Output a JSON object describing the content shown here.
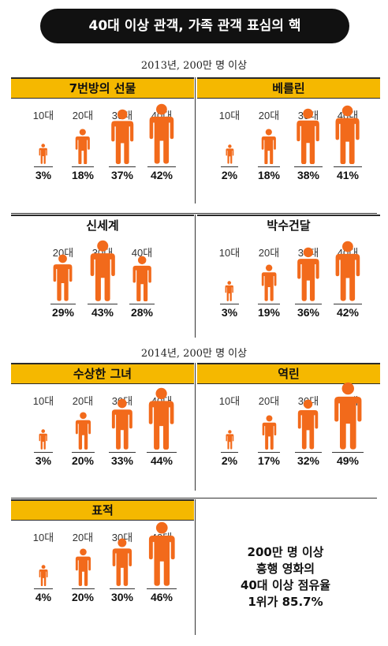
{
  "title": "40대 이상 관객, 가족 관객 표심의 핵",
  "sections": [
    {
      "label": "2013년, 200만 명 이상",
      "panels": [
        {
          "name": "7번방의 선물",
          "groups": [
            {
              "age": "10대",
              "percent": 3,
              "label": "3%"
            },
            {
              "age": "20대",
              "percent": 18,
              "label": "18%"
            },
            {
              "age": "30대",
              "percent": 37,
              "label": "37%"
            },
            {
              "age": "40대",
              "percent": 42,
              "label": "42%"
            }
          ]
        },
        {
          "name": "베를린",
          "groups": [
            {
              "age": "10대",
              "percent": 2,
              "label": "2%"
            },
            {
              "age": "20대",
              "percent": 18,
              "label": "18%"
            },
            {
              "age": "30대",
              "percent": 38,
              "label": "38%"
            },
            {
              "age": "40대",
              "percent": 41,
              "label": "41%"
            }
          ]
        },
        {
          "name": "신세계",
          "groups": [
            {
              "age": "20대",
              "percent": 29,
              "label": "29%"
            },
            {
              "age": "30대",
              "percent": 43,
              "label": "43%"
            },
            {
              "age": "40대",
              "percent": 28,
              "label": "28%"
            }
          ]
        },
        {
          "name": "박수건달",
          "groups": [
            {
              "age": "10대",
              "percent": 3,
              "label": "3%"
            },
            {
              "age": "20대",
              "percent": 19,
              "label": "19%"
            },
            {
              "age": "30대",
              "percent": 36,
              "label": "36%"
            },
            {
              "age": "40대",
              "percent": 42,
              "label": "42%"
            }
          ]
        }
      ]
    },
    {
      "label": "2014년, 200만 명 이상",
      "panels": [
        {
          "name": "수상한 그녀",
          "groups": [
            {
              "age": "10대",
              "percent": 3,
              "label": "3%"
            },
            {
              "age": "20대",
              "percent": 20,
              "label": "20%"
            },
            {
              "age": "30대",
              "percent": 33,
              "label": "33%"
            },
            {
              "age": "40대",
              "percent": 44,
              "label": "44%"
            }
          ]
        },
        {
          "name": "역린",
          "groups": [
            {
              "age": "10대",
              "percent": 2,
              "label": "2%"
            },
            {
              "age": "20대",
              "percent": 17,
              "label": "17%"
            },
            {
              "age": "30대",
              "percent": 32,
              "label": "32%"
            },
            {
              "age": "40대",
              "percent": 49,
              "label": "49%"
            }
          ]
        },
        {
          "name": "표적",
          "groups": [
            {
              "age": "10대",
              "percent": 4,
              "label": "4%"
            },
            {
              "age": "20대",
              "percent": 20,
              "label": "20%"
            },
            {
              "age": "30대",
              "percent": 30,
              "label": "30%"
            },
            {
              "age": "40대",
              "percent": 46,
              "label": "46%"
            }
          ]
        }
      ]
    }
  ],
  "summary": [
    "200만 명 이상",
    "흥행 영화의",
    "40대 이상 점유율",
    "1위가 85.7%"
  ],
  "chart_data": {
    "type": "table",
    "title": "40대 이상 관객, 가족 관객 표심의 핵",
    "icon_color": "#f26a1b",
    "header_color": "#f5b800",
    "groups": [
      {
        "label": "2013년, 200만 명 이상",
        "movies": [
          {
            "name": "7번방의 선물",
            "categories": [
              "10대",
              "20대",
              "30대",
              "40대"
            ],
            "values": [
              3,
              18,
              37,
              42
            ]
          },
          {
            "name": "베를린",
            "categories": [
              "10대",
              "20대",
              "30대",
              "40대"
            ],
            "values": [
              2,
              18,
              38,
              41
            ]
          },
          {
            "name": "신세계",
            "categories": [
              "20대",
              "30대",
              "40대"
            ],
            "values": [
              29,
              43,
              28
            ]
          },
          {
            "name": "박수건달",
            "categories": [
              "10대",
              "20대",
              "30대",
              "40대"
            ],
            "values": [
              3,
              19,
              36,
              42
            ]
          }
        ]
      },
      {
        "label": "2014년, 200만 명 이상",
        "movies": [
          {
            "name": "수상한 그녀",
            "categories": [
              "10대",
              "20대",
              "30대",
              "40대"
            ],
            "values": [
              3,
              20,
              33,
              44
            ]
          },
          {
            "name": "역린",
            "categories": [
              "10대",
              "20대",
              "30대",
              "40대"
            ],
            "values": [
              2,
              17,
              32,
              49
            ]
          },
          {
            "name": "표적",
            "categories": [
              "10대",
              "20대",
              "30대",
              "40대"
            ],
            "values": [
              4,
              20,
              30,
              46
            ]
          }
        ]
      }
    ]
  }
}
